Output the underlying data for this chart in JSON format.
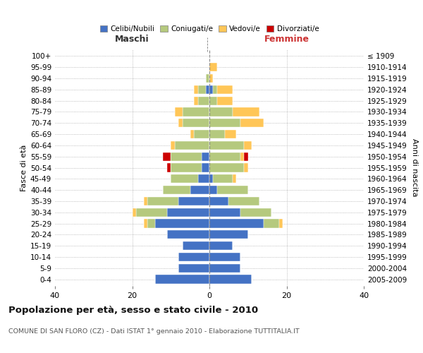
{
  "age_groups": [
    "0-4",
    "5-9",
    "10-14",
    "15-19",
    "20-24",
    "25-29",
    "30-34",
    "35-39",
    "40-44",
    "45-49",
    "50-54",
    "55-59",
    "60-64",
    "65-69",
    "70-74",
    "75-79",
    "80-84",
    "85-89",
    "90-94",
    "95-99",
    "100+"
  ],
  "birth_years": [
    "2005-2009",
    "2000-2004",
    "1995-1999",
    "1990-1994",
    "1985-1989",
    "1980-1984",
    "1975-1979",
    "1970-1974",
    "1965-1969",
    "1960-1964",
    "1955-1959",
    "1950-1954",
    "1945-1949",
    "1940-1944",
    "1935-1939",
    "1930-1934",
    "1925-1929",
    "1920-1924",
    "1915-1919",
    "1910-1914",
    "≤ 1909"
  ],
  "males": {
    "celibi": [
      14,
      8,
      8,
      7,
      11,
      14,
      11,
      8,
      5,
      3,
      2,
      2,
      0,
      0,
      0,
      0,
      0,
      1,
      0,
      0,
      0
    ],
    "coniugati": [
      0,
      0,
      0,
      0,
      0,
      2,
      8,
      8,
      7,
      7,
      8,
      8,
      9,
      4,
      7,
      7,
      3,
      2,
      1,
      0,
      0
    ],
    "vedovi": [
      0,
      0,
      0,
      0,
      0,
      1,
      1,
      1,
      0,
      0,
      0,
      0,
      1,
      1,
      1,
      2,
      1,
      1,
      0,
      0,
      0
    ],
    "divorziati": [
      0,
      0,
      0,
      0,
      0,
      0,
      0,
      0,
      0,
      0,
      1,
      2,
      0,
      0,
      0,
      0,
      0,
      0,
      0,
      0,
      0
    ]
  },
  "females": {
    "nubili": [
      11,
      8,
      8,
      6,
      10,
      14,
      8,
      5,
      2,
      1,
      0,
      0,
      0,
      0,
      0,
      0,
      0,
      1,
      0,
      0,
      0
    ],
    "coniugate": [
      0,
      0,
      0,
      0,
      0,
      4,
      8,
      8,
      8,
      5,
      9,
      8,
      9,
      4,
      8,
      6,
      2,
      1,
      0,
      0,
      0
    ],
    "vedove": [
      0,
      0,
      0,
      0,
      0,
      1,
      0,
      0,
      0,
      1,
      1,
      1,
      2,
      3,
      6,
      7,
      4,
      4,
      1,
      2,
      0
    ],
    "divorziate": [
      0,
      0,
      0,
      0,
      0,
      0,
      0,
      0,
      0,
      0,
      0,
      1,
      0,
      0,
      0,
      0,
      0,
      0,
      0,
      0,
      0
    ]
  },
  "colors": {
    "celibi": "#4472c4",
    "coniugati": "#b5c97e",
    "vedovi": "#ffc657",
    "divorziati": "#cc0000"
  },
  "title": "Popolazione per età, sesso e stato civile - 2010",
  "subtitle": "COMUNE DI SAN FLORO (CZ) - Dati ISTAT 1° gennaio 2010 - Elaborazione TUTTITALIA.IT",
  "label_maschi": "Maschi",
  "label_femmine": "Femmine",
  "ylabel_left": "Fasce di età",
  "ylabel_right": "Anni di nascita",
  "xlim": [
    -40,
    40
  ],
  "xticks": [
    -40,
    -20,
    0,
    20,
    40
  ],
  "xticklabels": [
    "40",
    "20",
    "0",
    "20",
    "40"
  ],
  "legend_labels": [
    "Celibi/Nubili",
    "Coniugati/e",
    "Vedovi/e",
    "Divorziati/e"
  ],
  "background_color": "#ffffff",
  "grid_color": "#aaaaaa",
  "bar_height": 0.78
}
